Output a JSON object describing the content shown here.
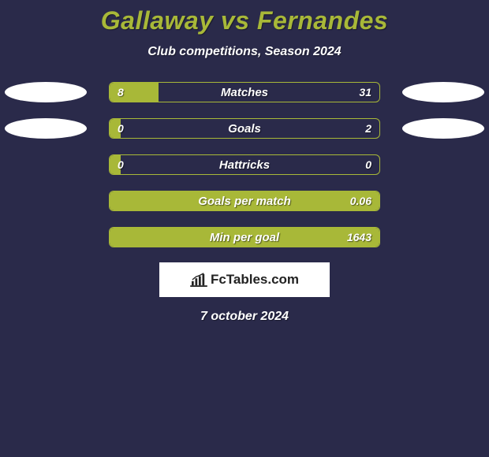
{
  "title": "Gallaway vs Fernandes",
  "subtitle": "Club competitions, Season 2024",
  "colors": {
    "background": "#2a2a4a",
    "accent": "#a8b838",
    "text": "#ffffff",
    "oval": "#ffffff",
    "logo_bg": "#ffffff",
    "logo_text": "#222222"
  },
  "rows": [
    {
      "label": "Matches",
      "left_val": "8",
      "right_val": "31",
      "left_pct": 18,
      "right_pct": 0,
      "full": false,
      "show_ovals": true
    },
    {
      "label": "Goals",
      "left_val": "0",
      "right_val": "2",
      "left_pct": 4,
      "right_pct": 0,
      "full": false,
      "show_ovals": true
    },
    {
      "label": "Hattricks",
      "left_val": "0",
      "right_val": "0",
      "left_pct": 4,
      "right_pct": 0,
      "full": false,
      "show_ovals": false
    },
    {
      "label": "Goals per match",
      "left_val": "",
      "right_val": "0.06",
      "left_pct": 0,
      "right_pct": 0,
      "full": true,
      "show_ovals": false
    },
    {
      "label": "Min per goal",
      "left_val": "",
      "right_val": "1643",
      "left_pct": 0,
      "right_pct": 0,
      "full": true,
      "show_ovals": false
    }
  ],
  "logo": {
    "text": "FcTables.com"
  },
  "date": "7 october 2024"
}
